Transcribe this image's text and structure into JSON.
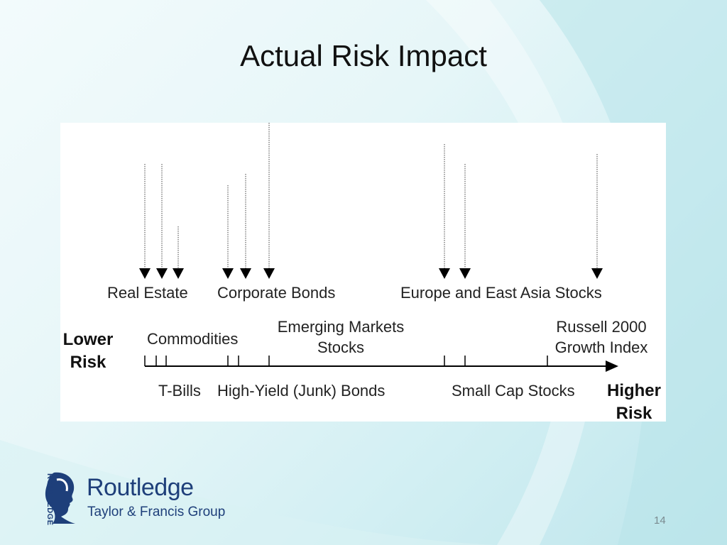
{
  "slide": {
    "title": "Actual Risk Impact",
    "page_number": "14"
  },
  "diagram": {
    "top_labels": {
      "real_estate": "Real Estate",
      "corporate_bonds": "Corporate Bonds",
      "europe_asia": "Europe and East Asia Stocks"
    },
    "middle_labels": {
      "commodities": "Commodities",
      "emerging_line1": "Emerging Markets",
      "emerging_line2": "Stocks",
      "russell_line1": "Russell 2000",
      "russell_line2": "Growth Index"
    },
    "bottom_labels": {
      "tbills": "T-Bills",
      "high_yield": "High-Yield (Junk) Bonds",
      "small_cap": "Small Cap Stocks"
    },
    "axis": {
      "lower_line1": "Lower",
      "lower_line2": "Risk",
      "higher_line1": "Higher",
      "higher_line2": "Risk"
    }
  },
  "logo": {
    "brand": "Routledge",
    "subtitle": "Taylor & Francis Group",
    "vertical": "ROUTLEDGE",
    "color": "#1e3f7a"
  }
}
